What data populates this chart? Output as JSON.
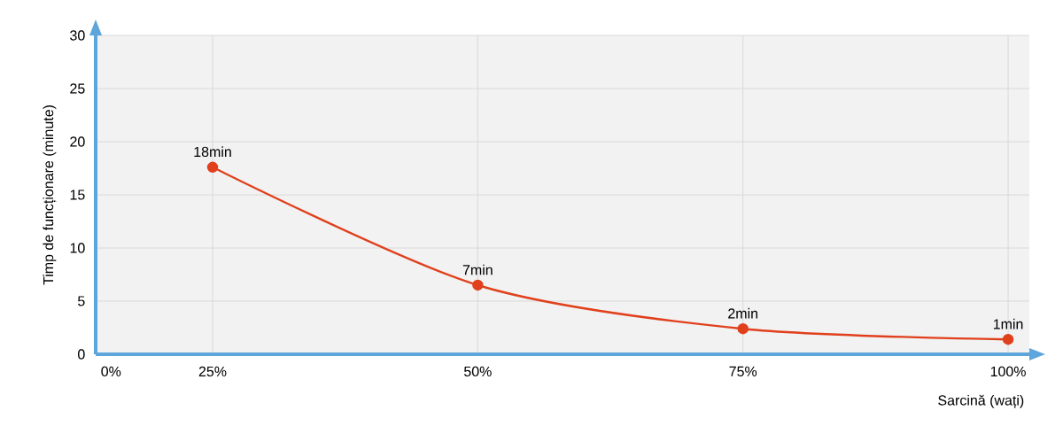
{
  "chart_data": {
    "type": "line",
    "xlabel": "Sarcină (wați)",
    "ylabel": "Timp de funcționare (minute)",
    "categories": [
      "25%",
      "50%",
      "75%",
      "100%"
    ],
    "series": [
      {
        "color": "#e0401c",
        "values": [
          17.6,
          6.5,
          2.4,
          1.4
        ],
        "value_labels": [
          "18min",
          "7min",
          "2min",
          "1min"
        ]
      }
    ],
    "annotations": [
      "0%"
    ],
    "ylim": [
      0,
      30
    ],
    "yticks": [
      0,
      5,
      10,
      15,
      20,
      25,
      30
    ],
    "grid": true,
    "marker": "circle",
    "line_style": "solid"
  }
}
